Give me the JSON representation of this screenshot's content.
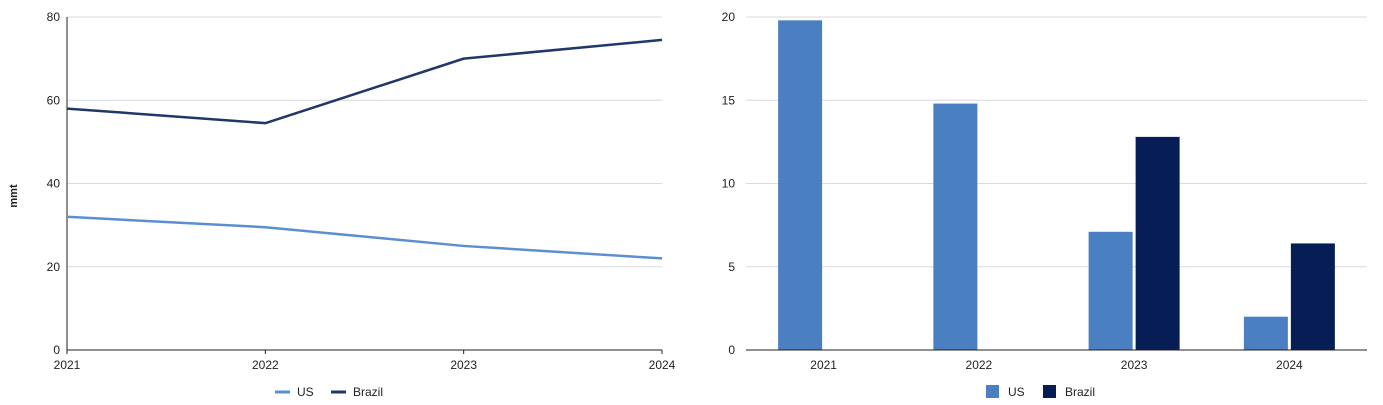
{
  "colors": {
    "us_line": "#5b8fd0",
    "brazil_line": "#223769",
    "us_bar": "#4a7fc1",
    "brazil_bar": "#061e55",
    "grid": "#d9d9e2",
    "axis": "#222222"
  },
  "chart_data": [
    {
      "type": "line",
      "x": [
        "2021",
        "2022",
        "2023",
        "2024"
      ],
      "ylabel": "mmt",
      "ylim": [
        0,
        80
      ],
      "yticks": [
        "0",
        "20",
        "40",
        "60",
        "80"
      ],
      "grid": true,
      "legend_position": "bottom",
      "series": [
        {
          "name": "US",
          "values": [
            32,
            29.5,
            25,
            22
          ]
        },
        {
          "name": "Brazil",
          "values": [
            58,
            54.5,
            70,
            74.5
          ]
        }
      ]
    },
    {
      "type": "bar",
      "categories": [
        "2021",
        "2022",
        "2023",
        "2024"
      ],
      "ylim": [
        0,
        20
      ],
      "yticks": [
        "0",
        "5",
        "10",
        "15",
        "20"
      ],
      "grid": true,
      "legend_position": "bottom",
      "series": [
        {
          "name": "US",
          "values": [
            19.8,
            14.8,
            7.1,
            2.0
          ]
        },
        {
          "name": "Brazil",
          "values": [
            null,
            null,
            12.8,
            6.4
          ]
        }
      ]
    }
  ]
}
